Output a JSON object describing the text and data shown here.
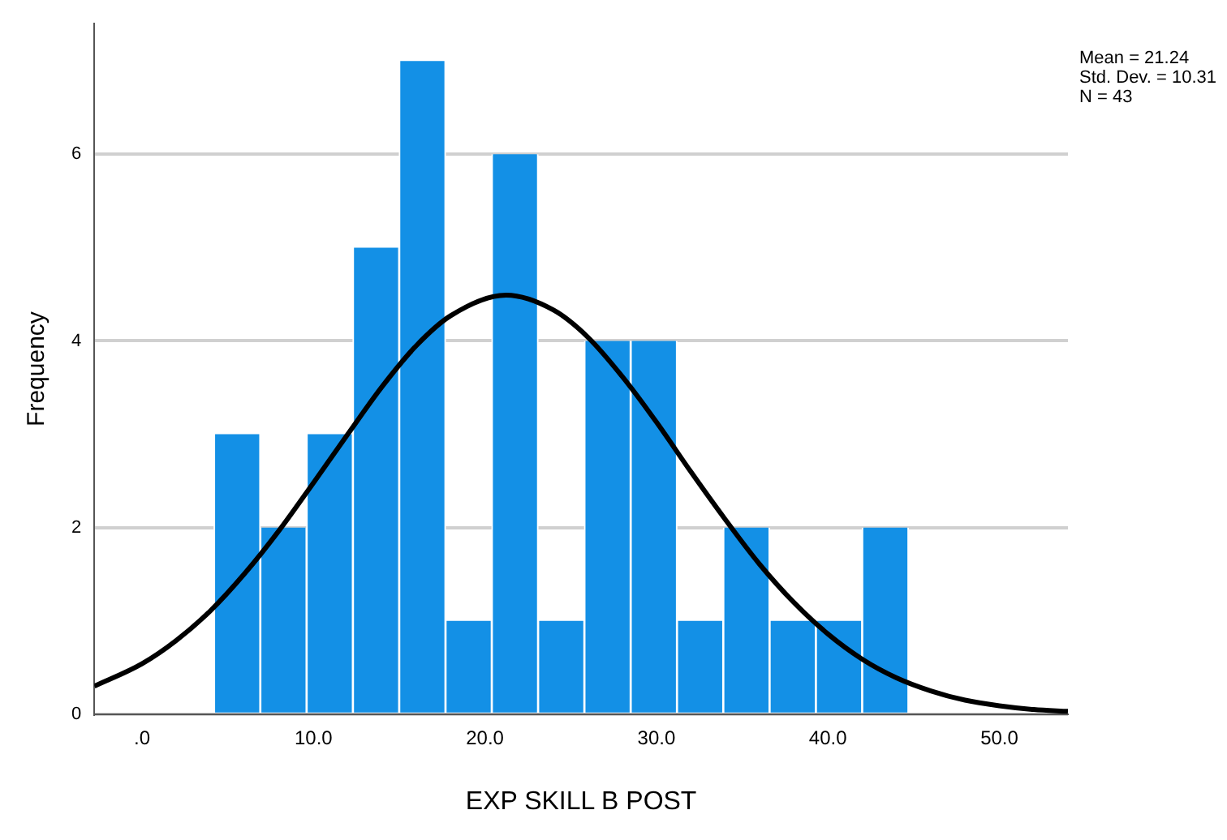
{
  "chart_data": {
    "type": "histogram",
    "xlabel": "EXP SKILL B POST",
    "ylabel": "Frequency",
    "annotations": [
      "Mean = 21.24",
      "Std. Dev. = 10.31",
      "N = 43"
    ],
    "bins": [
      4.2,
      6.9,
      9.6,
      12.3,
      15.0,
      17.7,
      20.4,
      23.1,
      25.8,
      28.5,
      31.2,
      33.9,
      36.6,
      39.3,
      42.0,
      44.7
    ],
    "values": [
      3,
      2,
      3,
      5,
      7,
      1,
      6,
      1,
      4,
      4,
      1,
      2,
      1,
      1,
      2
    ],
    "color": "#1390e6",
    "series": [
      {
        "type": "line",
        "color": "#000000",
        "x": [
          -2.78,
          0,
          2,
          4,
          6,
          8,
          10,
          12,
          14,
          16,
          18,
          21.24,
          24,
          26,
          28,
          30,
          32,
          34,
          36,
          38,
          40,
          42,
          44,
          46,
          48,
          50,
          52,
          54
        ],
        "values": [
          0.3,
          0.54,
          0.79,
          1.11,
          1.51,
          1.97,
          2.48,
          3.0,
          3.51,
          3.95,
          4.27,
          4.49,
          4.33,
          4.04,
          3.62,
          3.13,
          2.6,
          2.09,
          1.61,
          1.2,
          0.86,
          0.59,
          0.39,
          0.25,
          0.15,
          0.09,
          0.05,
          0.03
        ]
      }
    ],
    "xlim": [
      -2.78,
      54
    ],
    "xticks": [
      {
        "value": 0,
        "label": ".0"
      },
      {
        "value": 10,
        "label": "10.0"
      },
      {
        "value": 20,
        "label": "20.0"
      },
      {
        "value": 30,
        "label": "30.0"
      },
      {
        "value": 40,
        "label": "40.0"
      },
      {
        "value": 50,
        "label": "50.0"
      }
    ],
    "ylim": [
      0,
      7.4
    ],
    "yticks": [
      0,
      2,
      4,
      6
    ],
    "grid": "y",
    "legend": false
  }
}
